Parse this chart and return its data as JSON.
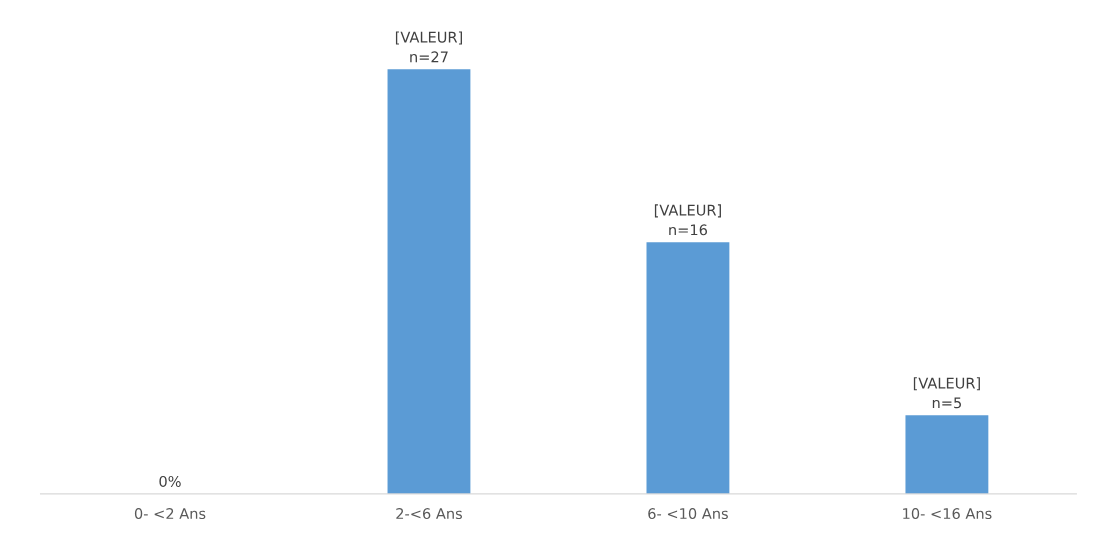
{
  "chart_data": {
    "type": "bar",
    "categories": [
      "0- <2 Ans",
      "2-<6 Ans",
      "6- <10 Ans",
      "10- <16 Ans"
    ],
    "values": [
      0,
      27,
      16,
      5
    ],
    "value_labels": [
      "0%",
      "[VALEUR]\nn=27",
      "[VALEUR]\nn=16",
      "[VALEUR]\nn=5"
    ],
    "color": "#5b9bd5",
    "grid": false,
    "legend": false
  }
}
